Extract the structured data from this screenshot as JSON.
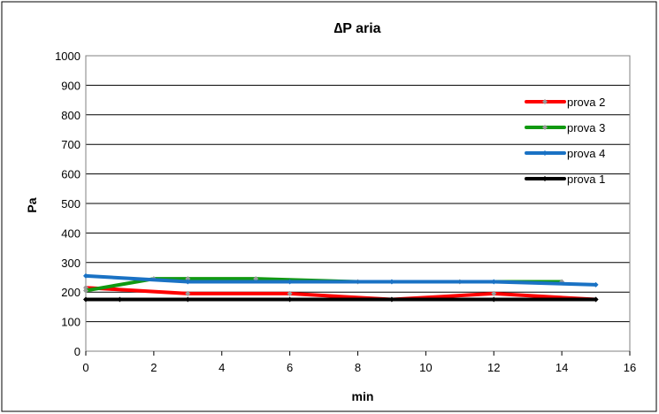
{
  "chart_data": {
    "type": "line",
    "title": "∆P aria",
    "xlabel": "min",
    "ylabel": "Pa",
    "xlim": [
      0,
      16
    ],
    "ylim": [
      0,
      1000
    ],
    "xticks": [
      0,
      2,
      4,
      6,
      8,
      10,
      12,
      14,
      16
    ],
    "yticks": [
      0,
      100,
      200,
      300,
      400,
      500,
      600,
      700,
      800,
      900,
      1000
    ],
    "grid": "horizontal",
    "legend_position": "top-right",
    "series": [
      {
        "name": "prova 2",
        "color": "#ff0000",
        "marker_color": "#999999",
        "x": [
          0,
          3,
          6,
          9,
          12,
          15
        ],
        "y": [
          215,
          195,
          195,
          175,
          195,
          175
        ]
      },
      {
        "name": "prova 3",
        "color": "#119911",
        "marker_color": "#999999",
        "x": [
          0,
          2,
          3,
          5,
          8,
          11,
          14
        ],
        "y": [
          205,
          245,
          245,
          245,
          235,
          235,
          235
        ]
      },
      {
        "name": "prova 4",
        "color": "#1a72c4",
        "marker_color": "#1a72c4",
        "x": [
          0,
          3,
          6,
          9,
          12,
          15
        ],
        "y": [
          255,
          235,
          235,
          235,
          235,
          225
        ]
      },
      {
        "name": "prova 1",
        "color": "#000000",
        "marker_color": "#000000",
        "x": [
          0,
          1,
          3,
          6,
          9,
          12,
          15
        ],
        "y": [
          175,
          175,
          175,
          175,
          175,
          175,
          175
        ]
      }
    ]
  }
}
